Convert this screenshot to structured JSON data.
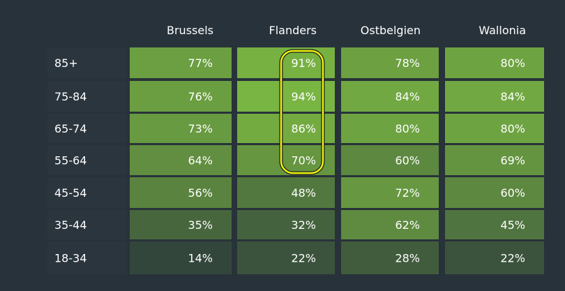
{
  "chart_data": {
    "type": "heatmap",
    "columns": [
      "Brussels",
      "Flanders",
      "Ostbelgien",
      "Wallonia"
    ],
    "rows": [
      "85+",
      "75-84",
      "65-74",
      "55-64",
      "45-54",
      "35-44",
      "18-34"
    ],
    "values": [
      [
        77,
        91,
        78,
        80
      ],
      [
        76,
        94,
        84,
        84
      ],
      [
        73,
        86,
        80,
        80
      ],
      [
        64,
        70,
        60,
        69
      ],
      [
        56,
        48,
        72,
        60
      ],
      [
        35,
        32,
        62,
        45
      ],
      [
        14,
        22,
        28,
        22
      ]
    ],
    "value_suffix": "%",
    "highlight": {
      "column": "Flanders",
      "rows": [
        "85+",
        "75-84",
        "65-74",
        "55-64"
      ],
      "color": "#f2f20a"
    },
    "color_scale": {
      "low": "#2e3e3c",
      "high": "#7ab642"
    }
  }
}
